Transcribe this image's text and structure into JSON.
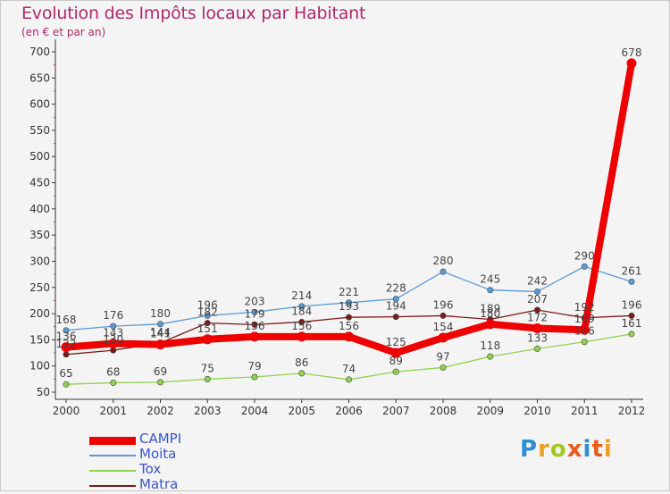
{
  "header": {
    "title": "Evolution des Impôts locaux par Habitant",
    "subtitle": "(en € et par an)"
  },
  "brand": {
    "text": "Proxiti",
    "letter_colors": [
      "#2c8fd6",
      "#f0a020",
      "#a4c620",
      "#e85c1a",
      "#2c8fd6",
      "#e85c1a",
      "#f0a020"
    ]
  },
  "chart_data": {
    "type": "line",
    "x": [
      "2000",
      "2001",
      "2002",
      "2003",
      "2004",
      "2005",
      "2006",
      "2007",
      "2008",
      "2009",
      "2010",
      "2011",
      "2012"
    ],
    "ylim": [
      50,
      700
    ],
    "yticks": [
      50,
      100,
      150,
      200,
      250,
      300,
      350,
      400,
      450,
      500,
      550,
      600,
      650,
      700
    ],
    "grid": false,
    "legend_position": "bottom-left",
    "series": [
      {
        "name": "Moita",
        "color": "#5b9bd5",
        "values": [
          168,
          176,
          180,
          196,
          203,
          214,
          221,
          228,
          280,
          245,
          242,
          290,
          261
        ]
      },
      {
        "name": "Tox",
        "color": "#8ed24d",
        "values": [
          65,
          68,
          69,
          75,
          79,
          86,
          74,
          89,
          97,
          118,
          133,
          146,
          161
        ]
      },
      {
        "name": "Matra",
        "color": "#7a1a1a",
        "values": [
          122,
          130,
          144,
          182,
          179,
          184,
          193,
          194,
          196,
          189,
          207,
          192,
          196
        ]
      },
      {
        "name": "CAMPI",
        "color": "#ee0000",
        "values": [
          136,
          143,
          141,
          151,
          156,
          156,
          156,
          125,
          154,
          180,
          172,
          169,
          678
        ]
      }
    ]
  },
  "legend": {
    "items": [
      {
        "name": "CAMPI",
        "color": "#ee0000"
      },
      {
        "name": "Moita",
        "color": "#5b9bd5"
      },
      {
        "name": "Tox",
        "color": "#8ed24d"
      },
      {
        "name": "Matra",
        "color": "#7a1a1a"
      }
    ]
  }
}
